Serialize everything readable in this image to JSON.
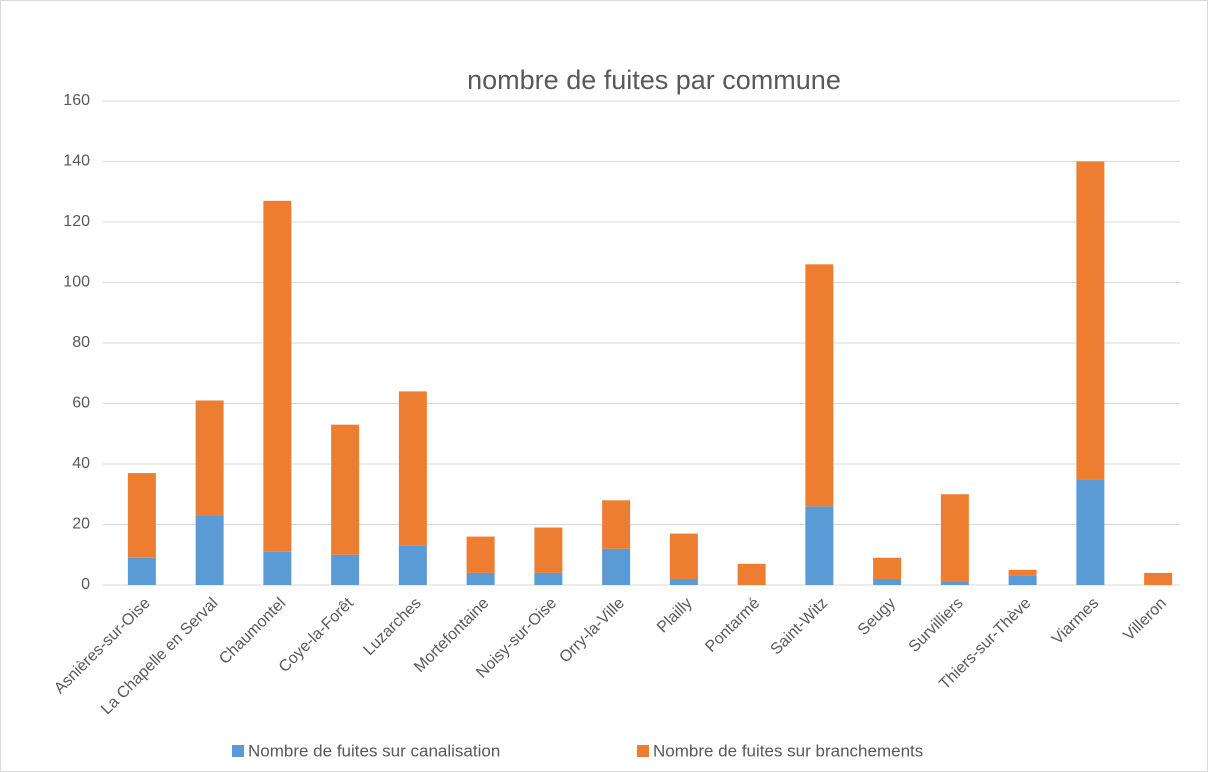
{
  "chart_data": {
    "type": "stacked_bar",
    "title": "nombre de fuites par commune",
    "categories": [
      "Asnières-sur-Oise",
      "La Chapelle en Serval",
      "Chaumontel",
      "Coye-la-Forêt",
      "Luzarches",
      "Mortefontaine",
      "Noisy-sur-Oise",
      "Orry-la-Ville",
      "Plailly",
      "Pontarmé",
      "Saint-Witz",
      "Seugy",
      "Survilliers",
      "Thiers-sur-Thève",
      "Viarmes",
      "Villeron"
    ],
    "series": [
      {
        "name": "Nombre de fuites sur canalisation",
        "color": "#5b9bd5",
        "values": [
          9,
          23,
          11,
          10,
          13,
          4,
          4,
          12,
          2,
          0,
          26,
          2,
          1,
          3,
          35,
          0
        ]
      },
      {
        "name": "Nombre de fuites sur branchements",
        "color": "#ed7d31",
        "values": [
          28,
          38,
          116,
          43,
          51,
          12,
          15,
          16,
          15,
          7,
          80,
          7,
          29,
          2,
          105,
          4
        ]
      }
    ],
    "ylim": [
      0,
      160
    ],
    "yticks": [
      0,
      20,
      40,
      60,
      80,
      100,
      120,
      140,
      160
    ],
    "grid": true,
    "legend": "bottom"
  }
}
